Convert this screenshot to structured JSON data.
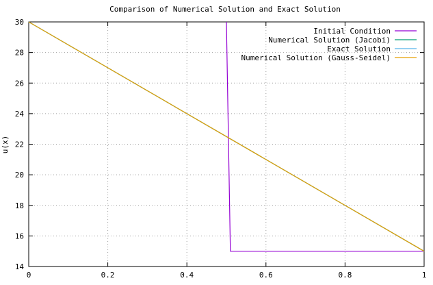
{
  "chart_data": {
    "type": "line",
    "title": "Comparison of Numerical Solution and Exact Solution",
    "xlabel": "",
    "ylabel": "u(x)",
    "xlim": [
      0,
      1
    ],
    "ylim": [
      14,
      30
    ],
    "grid": true,
    "legend_position": "top-right",
    "x_ticks": [
      0,
      0.2,
      0.4,
      0.6,
      0.8,
      1
    ],
    "x_tick_labels": [
      "0",
      "0.2",
      "0.4",
      "0.6",
      "0.8",
      "1"
    ],
    "y_ticks": [
      14,
      16,
      18,
      20,
      22,
      24,
      26,
      28,
      30
    ],
    "y_tick_labels": [
      "14",
      "16",
      "18",
      "20",
      "22",
      "24",
      "26",
      "28",
      "30"
    ],
    "series": [
      {
        "name": "Initial Condition",
        "color": "#9400d3",
        "x": [
          0.5,
          0.51,
          0.51,
          1.0
        ],
        "y": [
          30,
          15,
          15,
          15
        ]
      },
      {
        "name": "Numerical Solution (Jacobi)",
        "color": "#009e73",
        "x": [
          0,
          1
        ],
        "y": [
          30,
          15
        ]
      },
      {
        "name": "Exact Solution",
        "color": "#56b4e9",
        "x": [
          0,
          1
        ],
        "y": [
          30,
          15
        ]
      },
      {
        "name": "Numerical Solution (Gauss-Seidel)",
        "color": "#e69f00",
        "x": [
          0,
          1
        ],
        "y": [
          30,
          15
        ]
      }
    ]
  }
}
